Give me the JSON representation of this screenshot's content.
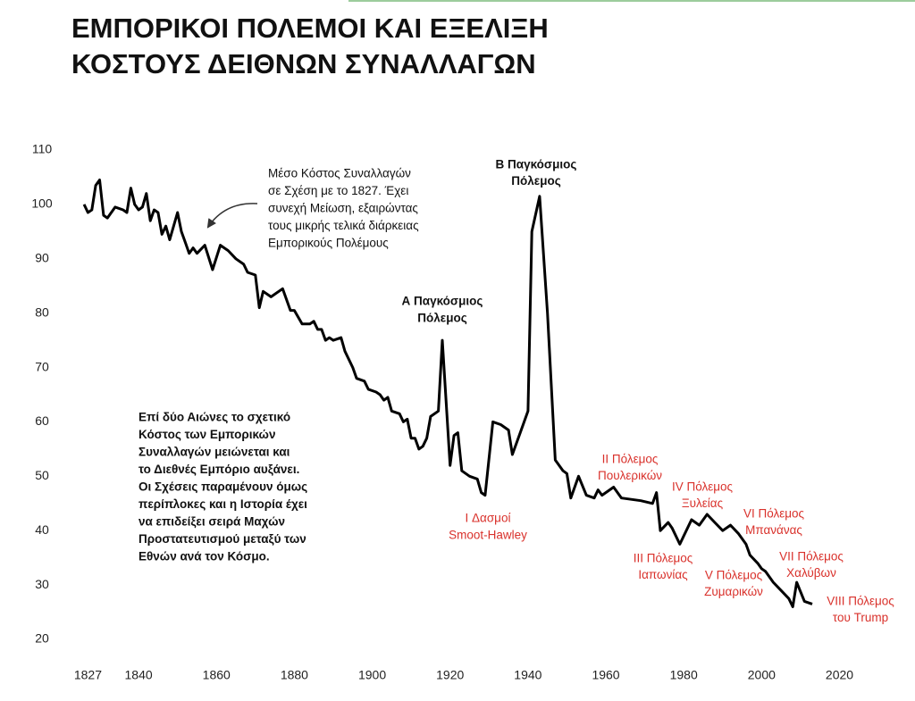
{
  "chart_data": {
    "type": "line",
    "title": [
      "ΕΜΠΟΡΙΚΟΙ ΠΟΛΕΜΟΙ ΚΑΙ ΕΞΕΛΙΞΗ",
      "ΚΟΣΤΟΥΣ ΔΕΙΘΝΩΝ ΣΥΝΑΛΛΑΓΩΝ"
    ],
    "x": [
      1826,
      1827,
      1828,
      1829,
      1830,
      1831,
      1832,
      1834,
      1836,
      1837,
      1838,
      1839,
      1840,
      1841,
      1842,
      1843,
      1844,
      1845,
      1846,
      1847,
      1848,
      1850,
      1851,
      1852,
      1853,
      1854,
      1855,
      1857,
      1859,
      1861,
      1863,
      1865,
      1867,
      1868,
      1870,
      1871,
      1872,
      1874,
      1877,
      1879,
      1880,
      1882,
      1884,
      1885,
      1886,
      1887,
      1888,
      1889,
      1890,
      1892,
      1893,
      1895,
      1896,
      1898,
      1899,
      1901,
      1902,
      1903,
      1904,
      1905,
      1907,
      1908,
      1909,
      1910,
      1911,
      1912,
      1913,
      1914,
      1915,
      1917,
      1918,
      1920,
      1921,
      1922,
      1923,
      1925,
      1927,
      1928,
      1929,
      1931,
      1933,
      1935,
      1936,
      1938,
      1940,
      1941,
      1943,
      1945,
      1947,
      1949,
      1950,
      1951,
      1953,
      1955,
      1957,
      1958,
      1959,
      1960,
      1962,
      1964,
      1969,
      1972,
      1973,
      1974,
      1976,
      1977,
      1979,
      1982,
      1984,
      1986,
      1988,
      1990,
      1992,
      1994,
      1996,
      1997,
      1999,
      2000,
      2001,
      2003,
      2005,
      2007,
      2008,
      2009,
      2011,
      2013
    ],
    "values": [
      100,
      98.5,
      99,
      103.5,
      104.5,
      98,
      97.5,
      99.5,
      99,
      98.5,
      103,
      100,
      99,
      99.5,
      102,
      97,
      99,
      98.5,
      94.5,
      96,
      93.5,
      98.5,
      95,
      93,
      91,
      92,
      91,
      92.5,
      88,
      92.5,
      91.5,
      90,
      89,
      87.5,
      87,
      81,
      84,
      83,
      84.5,
      80.5,
      80.5,
      78,
      78,
      78.5,
      77,
      77,
      75,
      75.5,
      75,
      75.5,
      73,
      70,
      68,
      67.5,
      66,
      65.5,
      65,
      64,
      64.5,
      62,
      61.5,
      60,
      60.5,
      57,
      57,
      55,
      55.5,
      57,
      61,
      62,
      75,
      52,
      57.5,
      58,
      51,
      50,
      49.5,
      47,
      46.5,
      60,
      59.5,
      58.5,
      54,
      58,
      62,
      95,
      101.5,
      80,
      53,
      51,
      50.5,
      46,
      50,
      46.5,
      46,
      47.5,
      46.5,
      47,
      48,
      46,
      45.5,
      45,
      47,
      40,
      41.5,
      40.5,
      37.5,
      42,
      41,
      43,
      41.5,
      40,
      41,
      39.5,
      37.5,
      35.5,
      34,
      33,
      32.5,
      30.5,
      29,
      27.5,
      26,
      30.5,
      27,
      26.5
    ],
    "color": "#000000",
    "xlim": [
      1823,
      2027
    ],
    "xticks": [
      1827,
      1840,
      1860,
      1880,
      1900,
      1920,
      1940,
      1960,
      1980,
      2000,
      2020
    ],
    "ylim": [
      20,
      110
    ],
    "yticks": [
      20,
      30,
      40,
      50,
      60,
      70,
      80,
      90,
      100,
      110
    ],
    "annotations": [
      {
        "color": "#111111",
        "lines": [
          "Μέσο Κόστος Συναλλαγών",
          "σε Σχέση με το 1827. Έχει",
          "συνεχή Μείωση, εξαιρώντας",
          "τους μικρής τελικά διάρκειας",
          "Εμπορικούς Πολέμους"
        ]
      },
      {
        "color": "#111111",
        "lines": [
          "Α Παγκόσμιος",
          "Πόλεμος"
        ]
      },
      {
        "color": "#111111",
        "lines": [
          "Β Παγκόσμιος",
          "Πόλεμος"
        ]
      },
      {
        "color": "#111111",
        "lines": [
          "Επί δύο Αιώνες το σχετικό",
          "Κόστος των Εμπορικών",
          "Συναλλαγών μειώνεται και",
          "το Διεθνές Εμπόριο αυξάνει.",
          "Οι Σχέσεις παραμένουν όμως",
          "περίπλοκες και η Ιστορία έχει",
          "να επιδείξει σειρά Μαχών",
          "Προστατευτισμού μεταξύ των",
          "Εθνών ανά τον Κόσμο."
        ]
      },
      {
        "color": "#d9312b",
        "lines": [
          "I Δασμοί",
          "Smoot-Hawley"
        ]
      },
      {
        "color": "#d9312b",
        "lines": [
          "II Πόλεμος",
          "Πουλερικών"
        ]
      },
      {
        "color": "#d9312b",
        "lines": [
          "III Πόλεμος",
          "Ιαπωνίας"
        ]
      },
      {
        "color": "#d9312b",
        "lines": [
          "IV Πόλεμος",
          "Ξυλείας"
        ]
      },
      {
        "color": "#d9312b",
        "lines": [
          "V Πόλεμος",
          "Ζυμαρικών"
        ]
      },
      {
        "color": "#d9312b",
        "lines": [
          "VI Πόλεμος",
          "Μπανάνας"
        ]
      },
      {
        "color": "#d9312b",
        "lines": [
          "VII Πόλεμος",
          "Χαλύβων"
        ]
      },
      {
        "color": "#d9312b",
        "lines": [
          "VIII Πόλεμος",
          "του Trump"
        ]
      }
    ]
  }
}
